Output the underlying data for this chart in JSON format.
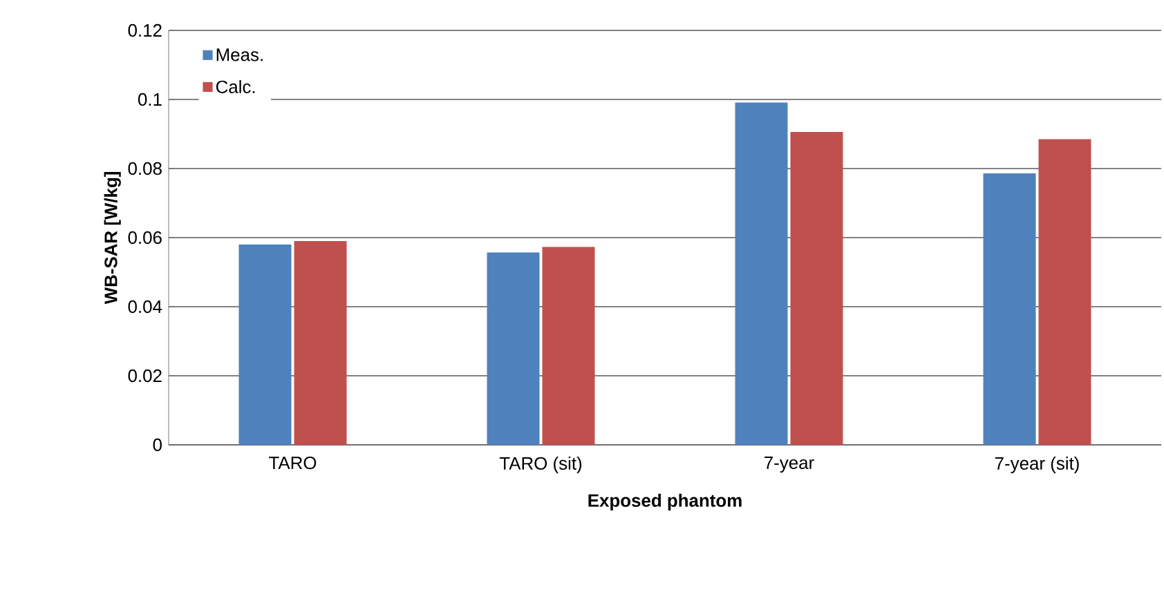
{
  "chart_data": {
    "type": "bar",
    "xlabel": "Exposed phantom",
    "ylabel": "WB-SAR [W/kg]",
    "categories": [
      "TARO",
      "TARO (sit)",
      "7-year",
      "7-year (sit)"
    ],
    "series": [
      {
        "name": "Meas.",
        "color": "#4f81bd",
        "values": [
          0.058,
          0.0557,
          0.0991,
          0.0786
        ]
      },
      {
        "name": "Calc.",
        "color": "#c0504d",
        "values": [
          0.059,
          0.0573,
          0.0906,
          0.0885
        ]
      }
    ],
    "ylim": [
      0,
      0.12
    ],
    "yticks": [
      0,
      0.02,
      0.04,
      0.06,
      0.08,
      0.1,
      0.12
    ],
    "grid": "y",
    "legend": "top left"
  }
}
